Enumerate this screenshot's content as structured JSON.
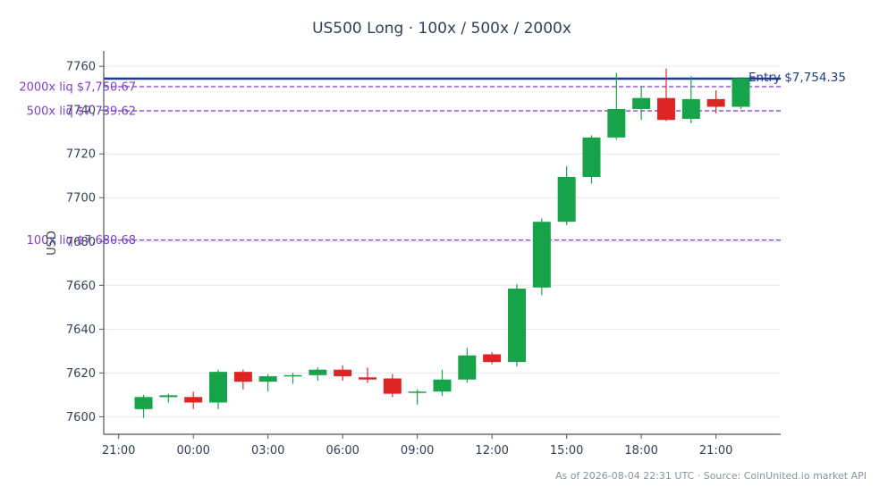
{
  "chart_data": {
    "type": "candlestick",
    "title": "US500 Long · 100x / 500x / 2000x",
    "ylabel": "USD",
    "xlabel": "",
    "ylim": [
      7592,
      7767
    ],
    "yticks": [
      7600,
      7620,
      7640,
      7660,
      7680,
      7700,
      7720,
      7740,
      7760
    ],
    "xticks": [
      {
        "label": "21:00",
        "hour": 0
      },
      {
        "label": "00:00",
        "hour": 3
      },
      {
        "label": "03:00",
        "hour": 6
      },
      {
        "label": "06:00",
        "hour": 9
      },
      {
        "label": "09:00",
        "hour": 12
      },
      {
        "label": "12:00",
        "hour": 15
      },
      {
        "label": "15:00",
        "hour": 18
      },
      {
        "label": "18:00",
        "hour": 21
      },
      {
        "label": "21:00",
        "hour": 24
      }
    ],
    "xlim": [
      -0.6,
      26.6
    ],
    "grid": true,
    "colors": {
      "up": "#16a34a",
      "down": "#dc2626",
      "entry": "#1e3a8a",
      "liq": "#7e3fc9",
      "grid": "#e6e9ee",
      "axis": "#4b5563"
    },
    "candles": [
      {
        "hour": 1,
        "open": 7603.5,
        "high": 7610.0,
        "low": 7599.5,
        "close": 7609.0
      },
      {
        "hour": 2,
        "open": 7609.0,
        "high": 7610.5,
        "low": 7606.5,
        "close": 7609.8
      },
      {
        "hour": 3,
        "open": 7609.0,
        "high": 7611.5,
        "low": 7603.5,
        "close": 7606.5
      },
      {
        "hour": 4,
        "open": 7606.5,
        "high": 7621.5,
        "low": 7603.5,
        "close": 7620.5
      },
      {
        "hour": 5,
        "open": 7620.5,
        "high": 7621.5,
        "low": 7612.5,
        "close": 7616.0
      },
      {
        "hour": 6,
        "open": 7616.0,
        "high": 7619.5,
        "low": 7611.5,
        "close": 7618.5
      },
      {
        "hour": 7,
        "open": 7618.5,
        "high": 7620.0,
        "low": 7615.0,
        "close": 7619.0
      },
      {
        "hour": 8,
        "open": 7619.0,
        "high": 7622.5,
        "low": 7616.5,
        "close": 7621.5
      },
      {
        "hour": 9,
        "open": 7621.5,
        "high": 7623.5,
        "low": 7616.5,
        "close": 7618.5
      },
      {
        "hour": 10,
        "open": 7618.0,
        "high": 7622.5,
        "low": 7615.5,
        "close": 7617.0
      },
      {
        "hour": 11,
        "open": 7617.5,
        "high": 7619.5,
        "low": 7609.0,
        "close": 7610.5
      },
      {
        "hour": 12,
        "open": 7611.0,
        "high": 7612.5,
        "low": 7605.5,
        "close": 7611.5
      },
      {
        "hour": 13,
        "open": 7611.5,
        "high": 7621.5,
        "low": 7609.5,
        "close": 7617.0
      },
      {
        "hour": 14,
        "open": 7617.0,
        "high": 7631.5,
        "low": 7615.5,
        "close": 7628.0
      },
      {
        "hour": 15,
        "open": 7628.5,
        "high": 7629.5,
        "low": 7624.0,
        "close": 7625.0
      },
      {
        "hour": 16,
        "open": 7625.0,
        "high": 7660.5,
        "low": 7623.0,
        "close": 7658.5
      },
      {
        "hour": 17,
        "open": 7659.0,
        "high": 7690.5,
        "low": 7655.5,
        "close": 7689.0
      },
      {
        "hour": 18,
        "open": 7689.0,
        "high": 7714.5,
        "low": 7687.5,
        "close": 7709.5
      },
      {
        "hour": 19,
        "open": 7709.5,
        "high": 7728.5,
        "low": 7706.5,
        "close": 7727.5
      },
      {
        "hour": 20,
        "open": 7727.5,
        "high": 7757.0,
        "low": 7726.5,
        "close": 7740.5
      },
      {
        "hour": 21,
        "open": 7740.5,
        "high": 7751.0,
        "low": 7735.5,
        "close": 7745.5
      },
      {
        "hour": 22,
        "open": 7745.5,
        "high": 7759.0,
        "low": 7735.0,
        "close": 7735.5
      },
      {
        "hour": 23,
        "open": 7736.0,
        "high": 7755.5,
        "low": 7734.0,
        "close": 7745.0
      },
      {
        "hour": 24,
        "open": 7745.0,
        "high": 7749.0,
        "low": 7738.5,
        "close": 7741.5
      },
      {
        "hour": 25,
        "open": 7741.5,
        "high": 7755.0,
        "low": 7740.5,
        "close": 7754.5
      }
    ],
    "reference_lines": [
      {
        "id": "entry",
        "label": "Entry $7,754.35",
        "value": 7754.35,
        "style": "solid",
        "color": "#1e3a8a",
        "label_side": "right"
      },
      {
        "id": "liq-2000x",
        "label": "2000x liq $7,750.67",
        "value": 7750.67,
        "style": "dashed",
        "color": "#7e3fc9",
        "label_side": "left"
      },
      {
        "id": "liq-500x",
        "label": "500x liq $7,739.62",
        "value": 7739.62,
        "style": "dashed",
        "color": "#7e3fc9",
        "label_side": "left"
      },
      {
        "id": "liq-100x",
        "label": "100x liq $7,680.68",
        "value": 7680.68,
        "style": "dashed",
        "color": "#7e3fc9",
        "label_side": "left"
      }
    ]
  },
  "footer": "As of 2026-08-04 22:31 UTC · Source: CoinUnited.io market API"
}
